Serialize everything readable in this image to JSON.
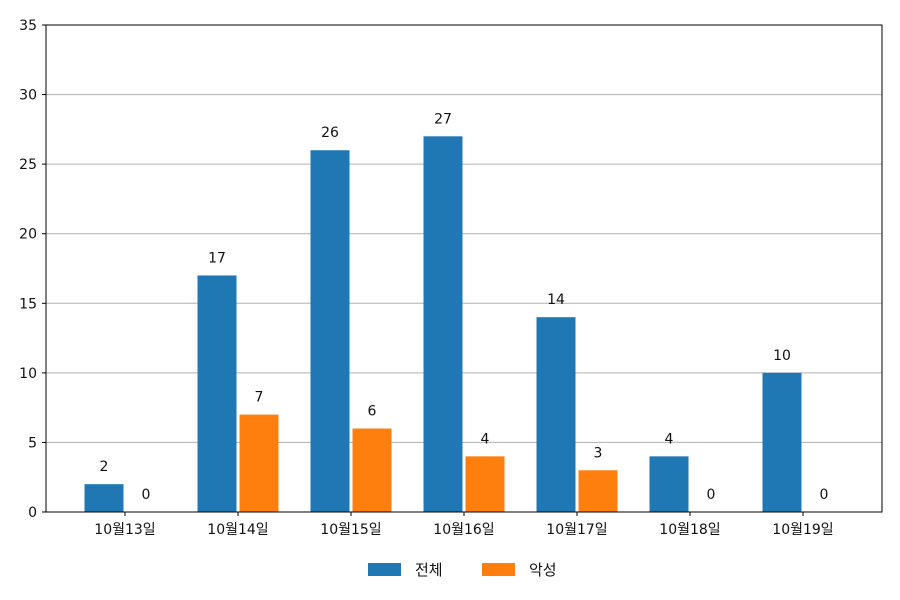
{
  "chart_data": {
    "type": "bar",
    "categories": [
      "10월13일",
      "10월14일",
      "10월15일",
      "10월16일",
      "10월17일",
      "10월18일",
      "10월19일"
    ],
    "series": [
      {
        "name": "전체",
        "color": "#1f77b4",
        "values": [
          2,
          17,
          26,
          27,
          14,
          4,
          10
        ]
      },
      {
        "name": "악성",
        "color": "#ff7f0e",
        "values": [
          0,
          7,
          6,
          4,
          3,
          0,
          0
        ]
      }
    ],
    "ylim": [
      0,
      35
    ],
    "yticks": [
      0,
      5,
      10,
      15,
      20,
      25,
      30,
      35
    ],
    "grid": "horizontal",
    "legend_position": "bottom-center",
    "data_labels": true
  }
}
